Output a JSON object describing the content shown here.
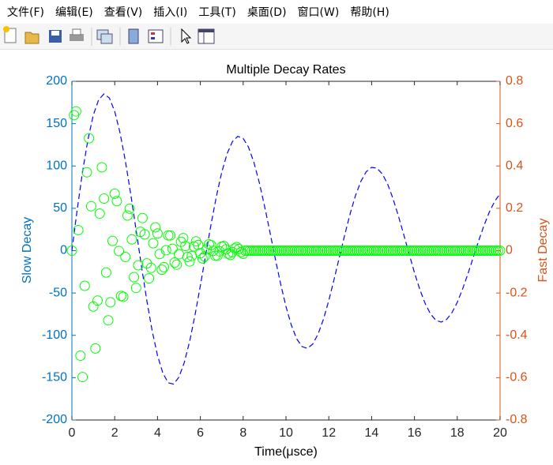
{
  "menu": [
    "文件(F)",
    "编辑(E)",
    "查看(V)",
    "插入(I)",
    "工具(T)",
    "桌面(D)",
    "窗口(W)",
    "帮助(H)"
  ],
  "chart_data": {
    "type": "line",
    "title": "Multiple Decay Rates",
    "x_label": "Time(μsce)",
    "y_label": "Slow Decay",
    "y2_label": "Fast Decay",
    "xlim": [
      0,
      20
    ],
    "xticks": [
      0,
      2,
      4,
      6,
      8,
      10,
      12,
      14,
      16,
      18,
      20
    ],
    "ylim": [
      -200,
      200
    ],
    "yticks": [
      -200,
      -150,
      -100,
      -50,
      0,
      50,
      100,
      150,
      200
    ],
    "y2lim": [
      -0.8,
      0.8
    ],
    "y2ticks": [
      -0.8,
      -0.6,
      -0.4,
      -0.2,
      0,
      0.2,
      0.4,
      0.6,
      0.8
    ],
    "y_axis_color": "#0072bd",
    "y2_axis_color": "#d95319",
    "grid": false,
    "series": [
      {
        "color": "#0000ff",
        "line_style": "dashed",
        "x": [
          0,
          0.25,
          0.5,
          0.75,
          1,
          1.25,
          1.5,
          1.75,
          2,
          2.25,
          2.5,
          2.75,
          3,
          3.25,
          3.5,
          3.75,
          4,
          4.25,
          4.5,
          4.75,
          5,
          5.25,
          5.5,
          5.75,
          6,
          6.25,
          6.5,
          6.75,
          7,
          7.25,
          7.5,
          7.75,
          8,
          8.25,
          8.5,
          8.75,
          9,
          9.25,
          9.5,
          9.75,
          10,
          10.25,
          10.5,
          10.75,
          11,
          11.25,
          11.5,
          11.75,
          12,
          12.25,
          12.5,
          12.75,
          13,
          13.25,
          13.5,
          13.75,
          14,
          14.25,
          14.5,
          14.75,
          15,
          15.25,
          15.5,
          15.75,
          16,
          16.25,
          16.5,
          16.75,
          17,
          17.25,
          17.5,
          17.75,
          18,
          18.25,
          18.5,
          18.75,
          19,
          19.25,
          19.5,
          19.75,
          20
        ],
        "values": [
          0,
          48.9,
          93.5,
          131.3,
          160.1,
          178.3,
          185.1,
          180.3,
          164.5,
          139.1,
          105.6,
          66.5,
          24.3,
          -18.4,
          -58.9,
          -94.8,
          -123.9,
          -144.7,
          -156.1,
          -157.6,
          -149.4,
          -132.1,
          -107.2,
          -76.3,
          -41.4,
          -4.9,
          31.1,
          64.2,
          92.6,
          114.6,
          128.9,
          135,
          132.6,
          122.2,
          104.4,
          80.7,
          52.6,
          22,
          -9.4,
          -39.2,
          -66,
          -88,
          -104.1,
          -113.3,
          -115.4,
          -110.3,
          -98.5,
          -81,
          -58.9,
          -33.6,
          -7.1,
          19.2,
          43.9,
          65.3,
          81.9,
          93.3,
          98.4,
          97.4,
          90.6,
          78.5,
          61.4,
          41.1,
          19,
          -3.6,
          -25.9,
          -45.7,
          -62.4,
          -74.7,
          -82.2,
          -84.4,
          -81.3,
          -73.4,
          -61.1,
          -45.3,
          -27.2,
          -7.8,
          11.6,
          29.8,
          45.7,
          58.4,
          67.2
        ]
      },
      {
        "color": "#00ff00",
        "marker": "circle",
        "axis": "y2",
        "x": [
          0,
          0.1,
          0.2,
          0.3,
          0.4,
          0.5,
          0.6,
          0.7,
          0.8,
          0.9,
          1,
          1.1,
          1.2,
          1.3,
          1.4,
          1.5,
          1.6,
          1.7,
          1.8,
          1.9,
          2,
          2.1,
          2.2,
          2.3,
          2.4,
          2.5,
          2.6,
          2.7,
          2.8,
          2.9,
          3,
          3.1,
          3.2,
          3.3,
          3.4,
          3.5,
          3.6,
          3.7,
          3.8,
          3.9,
          4,
          4.1,
          4.2,
          4.3,
          4.4,
          4.5,
          4.6,
          4.7,
          4.8,
          4.9,
          5,
          5.1,
          5.2,
          5.3,
          5.4,
          5.5,
          5.6,
          5.7,
          5.8,
          5.9,
          6,
          6.1,
          6.2,
          6.3,
          6.4,
          6.5,
          6.6,
          6.7,
          6.8,
          6.9,
          7,
          7.1,
          7.2,
          7.3,
          7.4,
          7.5,
          7.6,
          7.7,
          7.8,
          7.9,
          8,
          8.1,
          8.2,
          8.3,
          8.4,
          8.5,
          8.6,
          8.7,
          8.8,
          8.9,
          9,
          9.1,
          9.2,
          9.3,
          9.4,
          9.5,
          9.6,
          9.7,
          9.8,
          9.9,
          10,
          10.1,
          10.2,
          10.3,
          10.4,
          10.5,
          10.6,
          10.7,
          10.8,
          10.9,
          11,
          11.1,
          11.2,
          11.3,
          11.4,
          11.5,
          11.6,
          11.7,
          11.8,
          11.9,
          12,
          12.1,
          12.2,
          12.3,
          12.4,
          12.5,
          12.6,
          12.7,
          12.8,
          12.9,
          13,
          13.1,
          13.2,
          13.3,
          13.4,
          13.5,
          13.6,
          13.7,
          13.8,
          13.9,
          14,
          14.1,
          14.2,
          14.3,
          14.4,
          14.5,
          14.6,
          14.7,
          14.8,
          14.9,
          15,
          15.1,
          15.2,
          15.3,
          15.4,
          15.5,
          15.6,
          15.7,
          15.8,
          15.9,
          16,
          16.1,
          16.2,
          16.3,
          16.4,
          16.5,
          16.6,
          16.7,
          16.8,
          16.9,
          17,
          17.1,
          17.2,
          17.3,
          17.4,
          17.5,
          17.6,
          17.7,
          17.8,
          17.9,
          18,
          18.1,
          18.2,
          18.3,
          18.4,
          18.5,
          18.6,
          18.7,
          18.8,
          18.9,
          19,
          19.1,
          19.2,
          19.3,
          19.4,
          19.5,
          19.6,
          19.7,
          19.8,
          19.9,
          20
        ],
        "values": [
          0,
          0.64,
          0.658,
          0.097,
          -0.496,
          -0.597,
          -0.166,
          0.37,
          0.531,
          0.21,
          -0.264,
          -0.462,
          -0.236,
          0.175,
          0.394,
          0.246,
          -0.103,
          -0.329,
          -0.244,
          0.046,
          0.269,
          0.234,
          -0.002,
          -0.214,
          -0.218,
          -0.03,
          0.166,
          0.198,
          0.053,
          -0.125,
          -0.176,
          -0.069,
          0.089,
          0.154,
          0.077,
          -0.06,
          -0.131,
          -0.081,
          0.035,
          0.11,
          0.081,
          -0.016,
          -0.09,
          -0.078,
          0.002,
          0.072,
          0.072,
          0.009,
          -0.056,
          -0.066,
          -0.017,
          0.042,
          0.059,
          0.022,
          -0.03,
          -0.051,
          -0.025,
          0.02,
          0.044,
          0.027,
          -0.012,
          -0.037,
          -0.027,
          0.006,
          0.03,
          0.026,
          -0.001,
          -0.024,
          -0.024,
          -0.003,
          0.019,
          0.022,
          0.006,
          -0.014,
          -0.02,
          -0.007,
          0.01,
          0.017,
          0.008,
          -0.007,
          -0.015,
          0,
          0,
          0,
          0,
          0,
          0,
          0,
          0,
          0,
          0,
          0,
          0,
          0,
          0,
          0,
          0,
          0,
          0,
          0,
          0,
          0,
          0,
          0,
          0,
          0,
          0,
          0,
          0,
          0,
          0,
          0,
          0,
          0,
          0,
          0,
          0,
          0,
          0,
          0,
          0,
          0,
          0,
          0,
          0,
          0,
          0,
          0,
          0,
          0,
          0,
          0,
          0,
          0,
          0,
          0,
          0,
          0,
          0,
          0,
          0,
          0,
          0,
          0,
          0,
          0,
          0,
          0,
          0,
          0,
          0,
          0,
          0,
          0,
          0,
          0,
          0,
          0,
          0,
          0,
          0,
          0,
          0,
          0,
          0,
          0,
          0,
          0,
          0,
          0,
          0,
          0,
          0,
          0,
          0,
          0,
          0,
          0,
          0,
          0,
          0,
          0,
          0,
          0,
          0,
          0,
          0,
          0,
          0,
          0,
          0,
          0,
          0,
          0,
          0,
          0,
          0,
          0,
          0,
          0,
          0
        ]
      }
    ]
  }
}
